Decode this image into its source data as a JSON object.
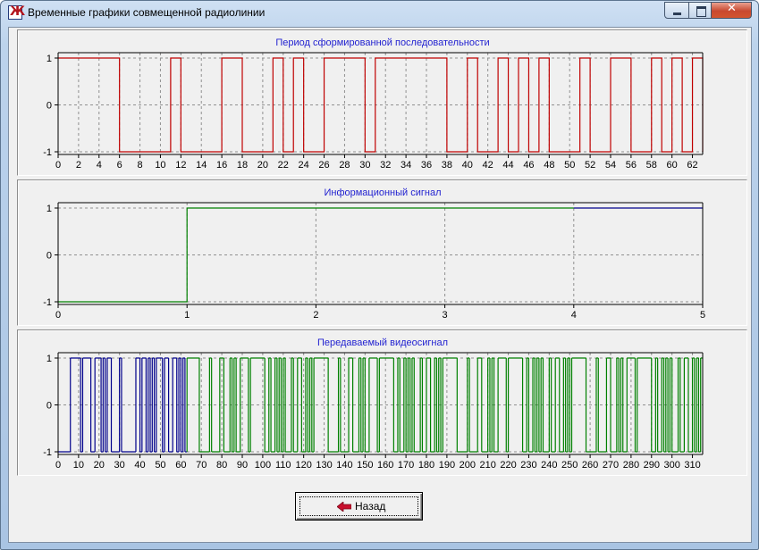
{
  "window": {
    "title": "Временные графики совмещенной радиолинии",
    "close_glyph": "✕"
  },
  "panels": [
    {
      "title": "Период сформированной последовательности",
      "color": "#c00000"
    },
    {
      "title": "Информационный сигнал",
      "color": "#008000"
    },
    {
      "title": "Передаваемый видеосигнал",
      "color_a": "#00008b",
      "color_b": "#008000"
    }
  ],
  "back_button": {
    "label": "Назад",
    "icon": "left-arrow-icon"
  },
  "chart_data": [
    {
      "type": "line",
      "step": true,
      "title": "Период сформированной последовательности",
      "xlim": [
        0,
        63
      ],
      "ylim": [
        -1,
        1
      ],
      "x_ticks": [
        0,
        2,
        4,
        6,
        8,
        10,
        12,
        14,
        16,
        18,
        20,
        22,
        24,
        26,
        28,
        30,
        32,
        34,
        36,
        38,
        40,
        42,
        44,
        46,
        48,
        50,
        52,
        54,
        56,
        58,
        60,
        62
      ],
      "y_ticks": [
        -1,
        0,
        1
      ],
      "grid": true,
      "series": [
        {
          "color": "#c00000",
          "x": [
            0,
            6,
            11,
            12,
            16,
            18,
            21,
            22,
            23,
            24,
            26,
            30,
            31,
            35,
            38,
            40,
            41,
            43,
            44,
            45,
            46,
            47,
            48,
            51,
            52,
            54,
            56,
            58,
            59,
            60,
            61,
            62,
            63
          ],
          "y": [
            1,
            -1,
            1,
            -1,
            1,
            -1,
            1,
            -1,
            1,
            -1,
            1,
            -1,
            1,
            1,
            -1,
            1,
            -1,
            1,
            -1,
            1,
            -1,
            1,
            -1,
            1,
            -1,
            1,
            -1,
            1,
            -1,
            1,
            -1,
            1,
            -1
          ]
        }
      ]
    },
    {
      "type": "line",
      "step": true,
      "title": "Информационный сигнал",
      "xlim": [
        0,
        5
      ],
      "ylim": [
        -1,
        1
      ],
      "x_ticks": [
        0,
        1,
        2,
        3,
        4,
        5
      ],
      "y_ticks": [
        -1,
        0,
        1
      ],
      "grid": true,
      "series": [
        {
          "color": "#008000",
          "x": [
            0,
            1,
            4
          ],
          "y": [
            -1,
            1,
            1
          ]
        },
        {
          "color": "#00008b",
          "x": [
            4,
            5
          ],
          "y": [
            1,
            1
          ]
        }
      ]
    },
    {
      "type": "line",
      "step": true,
      "title": "Передаваемый видеосигнал",
      "xlim": [
        0,
        315
      ],
      "ylim": [
        -1,
        1
      ],
      "x_ticks": [
        0,
        10,
        20,
        30,
        40,
        50,
        60,
        70,
        80,
        90,
        100,
        110,
        120,
        130,
        140,
        150,
        160,
        170,
        180,
        190,
        200,
        210,
        220,
        230,
        240,
        250,
        260,
        270,
        280,
        290,
        300,
        310
      ],
      "y_ticks": [
        -1,
        0,
        1
      ],
      "grid": true,
      "series": [
        {
          "color": "#00008b",
          "x_range": [
            0,
            63
          ]
        },
        {
          "color": "#008000",
          "x_range": [
            63,
            315
          ]
        }
      ]
    }
  ]
}
